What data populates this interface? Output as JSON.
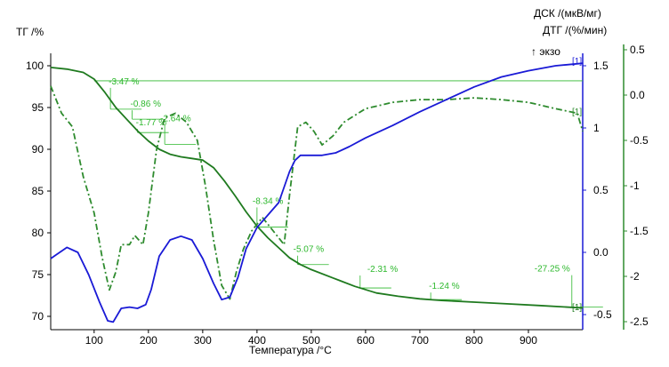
{
  "labels": {
    "tg_axis": "ТГ /%",
    "dsc_axis": "ДСК /(мкВ/мг)",
    "dtg_axis": "ДТГ /(%/мин)",
    "x_axis": "Температура /°С",
    "exo": "↑ экзо"
  },
  "colors": {
    "tg": "#1f7a1f",
    "dtg": "#2e8b2e",
    "dsc": "#1a1ad6",
    "annotation": "#2db82d",
    "axis": "#000000"
  },
  "chart_data": {
    "type": "line",
    "xlim": [
      20,
      1000
    ],
    "x_ticks": [
      100,
      200,
      300,
      400,
      500,
      600,
      700,
      800,
      900
    ],
    "tg_axis": {
      "range": [
        70,
        100
      ],
      "ticks": [
        70,
        75,
        80,
        85,
        90,
        95,
        100
      ]
    },
    "dsc_axis": {
      "range": [
        -0.6,
        1.6
      ],
      "ticks": [
        -0.5,
        0.0,
        0.5,
        1.0,
        1.5
      ]
    },
    "dtg_axis": {
      "range": [
        -2.5,
        0.5
      ],
      "ticks": [
        -2.5,
        -2.0,
        -1.5,
        -1.0,
        -0.5,
        0.0,
        0.5
      ]
    },
    "series": [
      {
        "key": "tg",
        "axis": "tg",
        "style": "solid",
        "x": [
          20,
          50,
          80,
          100,
          120,
          140,
          160,
          180,
          200,
          220,
          240,
          260,
          280,
          300,
          320,
          340,
          360,
          380,
          400,
          420,
          440,
          460,
          480,
          500,
          540,
          580,
          620,
          660,
          700,
          740,
          800,
          860,
          920,
          1000
        ],
        "y": [
          99.8,
          99.6,
          99.2,
          98.4,
          96.8,
          95.0,
          93.6,
          92.2,
          91.0,
          90.0,
          89.4,
          89.1,
          88.9,
          88.7,
          87.8,
          86.2,
          84.4,
          82.5,
          80.8,
          79.4,
          78.2,
          77.0,
          76.2,
          75.6,
          74.6,
          73.6,
          72.8,
          72.4,
          72.1,
          71.9,
          71.7,
          71.5,
          71.3,
          71.0
        ]
      },
      {
        "key": "dtg",
        "axis": "dtg",
        "style": "dashdot",
        "x": [
          20,
          40,
          60,
          80,
          100,
          115,
          128,
          140,
          150,
          165,
          175,
          190,
          200,
          215,
          230,
          250,
          270,
          290,
          305,
          320,
          335,
          350,
          362,
          375,
          390,
          410,
          430,
          450,
          460,
          475,
          490,
          505,
          520,
          540,
          560,
          600,
          650,
          700,
          750,
          800,
          850,
          900,
          950,
          990,
          1000
        ],
        "y": [
          0.1,
          -0.2,
          -0.35,
          -0.9,
          -1.3,
          -1.8,
          -2.15,
          -1.95,
          -1.65,
          -1.65,
          -1.55,
          -1.65,
          -1.3,
          -0.6,
          -0.25,
          -0.2,
          -0.3,
          -0.5,
          -1.0,
          -1.6,
          -2.1,
          -2.25,
          -1.95,
          -1.7,
          -1.5,
          -1.35,
          -1.5,
          -1.65,
          -1.1,
          -0.35,
          -0.3,
          -0.4,
          -0.55,
          -0.45,
          -0.3,
          -0.15,
          -0.08,
          -0.05,
          -0.05,
          -0.03,
          -0.05,
          -0.08,
          -0.15,
          -0.2,
          -0.4
        ]
      },
      {
        "key": "dsc",
        "axis": "dsc",
        "style": "solid",
        "x": [
          20,
          30,
          50,
          70,
          90,
          110,
          125,
          135,
          150,
          165,
          180,
          195,
          205,
          220,
          240,
          260,
          280,
          300,
          320,
          335,
          350,
          365,
          380,
          400,
          420,
          440,
          460,
          470,
          480,
          500,
          520,
          545,
          570,
          600,
          650,
          700,
          750,
          800,
          850,
          900,
          950,
          1000
        ],
        "y": [
          -0.05,
          -0.02,
          0.04,
          0.0,
          -0.18,
          -0.4,
          -0.55,
          -0.56,
          -0.45,
          -0.44,
          -0.45,
          -0.42,
          -0.3,
          -0.03,
          0.1,
          0.13,
          0.1,
          -0.05,
          -0.25,
          -0.38,
          -0.36,
          -0.2,
          0.03,
          0.2,
          0.3,
          0.4,
          0.65,
          0.74,
          0.78,
          0.78,
          0.78,
          0.8,
          0.85,
          0.92,
          1.02,
          1.13,
          1.23,
          1.33,
          1.41,
          1.46,
          1.5,
          1.52
        ]
      }
    ],
    "step_annotations": [
      {
        "label": "-3.47 %",
        "x": 130,
        "tg": 94.8
      },
      {
        "label": "-0.86 %",
        "x": 170,
        "tg": 93.6
      },
      {
        "label": "-1.77 %",
        "x": 180,
        "tg": 92.0
      },
      {
        "label": "-2.64 %",
        "x": 230,
        "tg": 90.6
      },
      {
        "label": "-8.34 %",
        "x": 400,
        "tg": 80.7
      },
      {
        "label": "-5.07 %",
        "x": 475,
        "tg": 76.2
      },
      {
        "label": "-2.31 %",
        "x": 590,
        "tg": 73.4
      },
      {
        "label": "-1.24 %",
        "x": 720,
        "tg": 72.0
      },
      {
        "label": "-27.25 %",
        "x": 980,
        "tg": 71.1
      }
    ],
    "markers": [
      "[1]",
      "[1]",
      "[1]"
    ]
  }
}
